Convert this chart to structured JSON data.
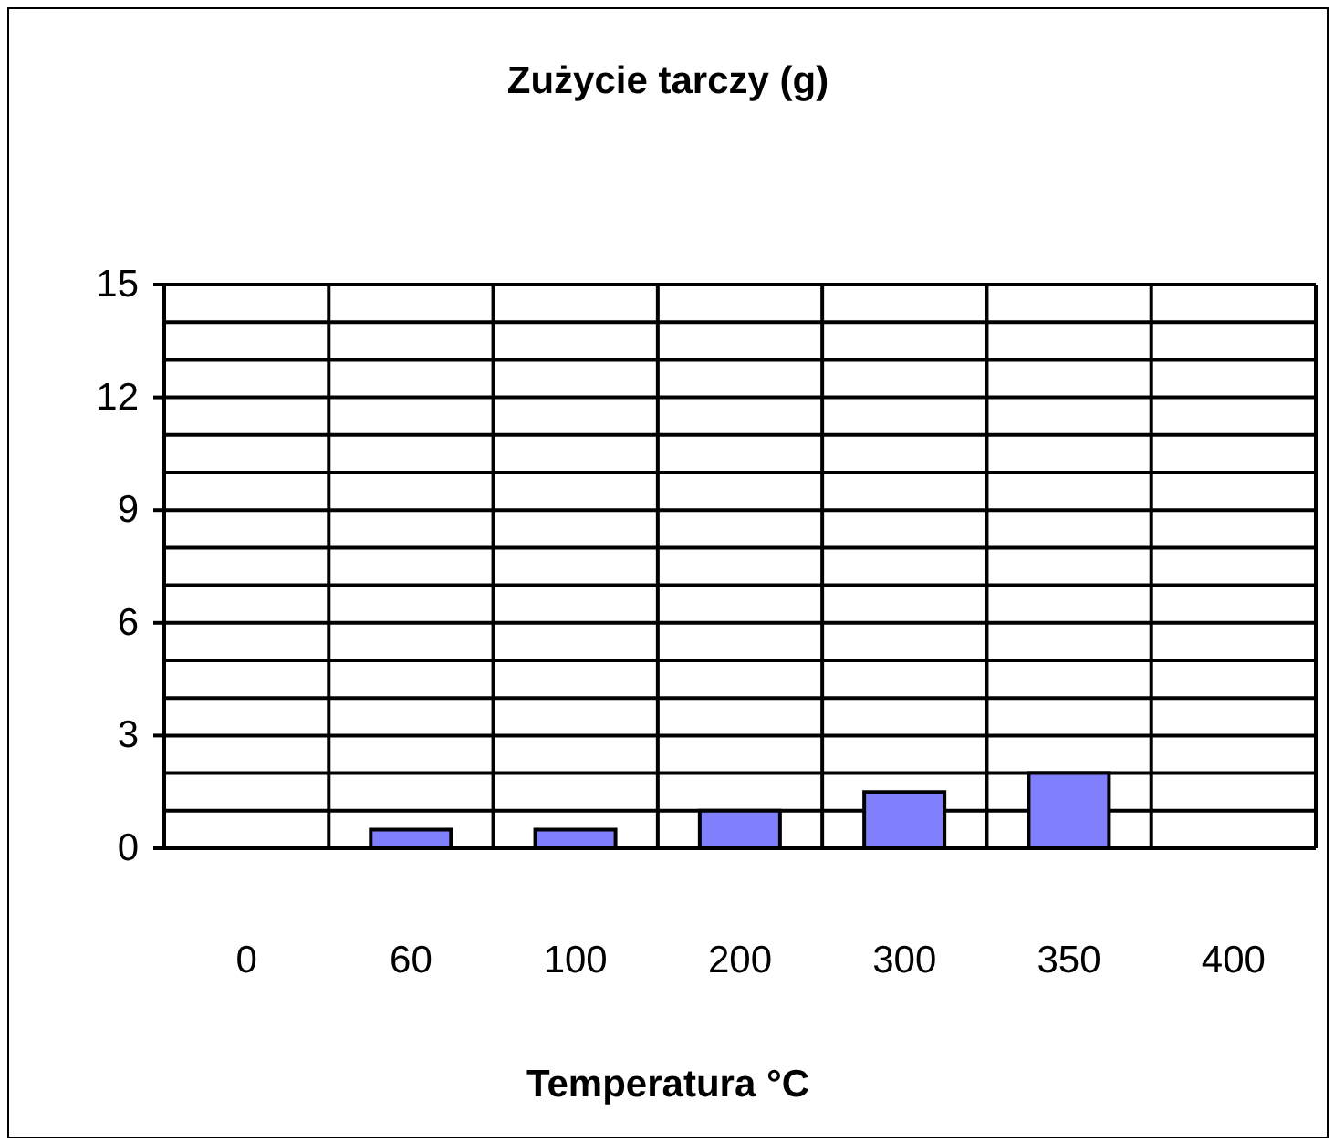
{
  "chart_data": {
    "type": "bar",
    "title": "Zużycie tarczy (g)",
    "xlabel": "Temperatura °C",
    "categories": [
      "0",
      "60",
      "100",
      "200",
      "300",
      "350",
      "400"
    ],
    "values": [
      0,
      0.5,
      0.5,
      1,
      1.5,
      2,
      0
    ],
    "color": "#8080ff",
    "ylim": [
      0,
      15
    ],
    "yticks": [
      0,
      {
        "value": 1,
        "label": null
      },
      {
        "value": 2,
        "label": null
      },
      3,
      {
        "value": 4,
        "label": null
      },
      {
        "value": 5,
        "label": null
      },
      6,
      {
        "value": 7,
        "label": null
      },
      {
        "value": 8,
        "label": null
      },
      9,
      {
        "value": 10,
        "label": null
      },
      {
        "value": 11,
        "label": null
      },
      12,
      {
        "value": 13,
        "label": null
      },
      {
        "value": 14,
        "label": null
      },
      15
    ],
    "grid": true,
    "legend": false
  }
}
